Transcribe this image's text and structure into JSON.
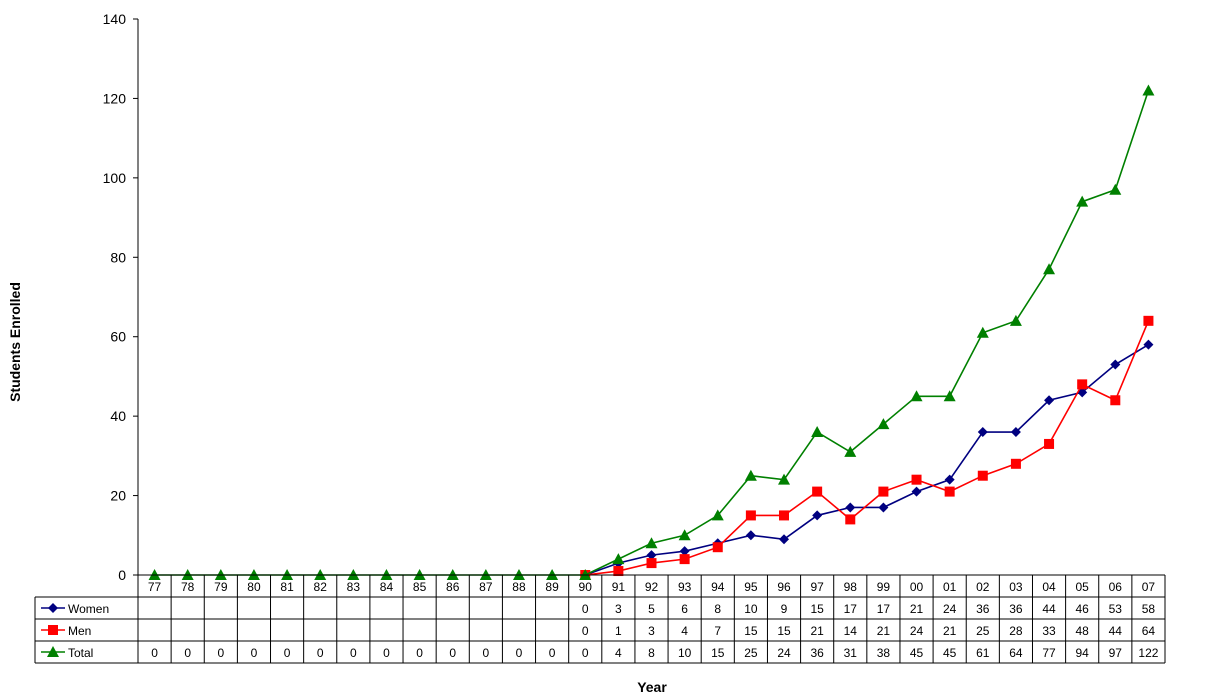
{
  "chart_data": {
    "type": "line",
    "title": "",
    "xlabel": "Year",
    "ylabel": "Students Enrolled",
    "ylim": [
      0,
      140
    ],
    "yticks": [
      0,
      20,
      40,
      60,
      80,
      100,
      120,
      140
    ],
    "grid": false,
    "legend": "data-table-left",
    "categories": [
      "77",
      "78",
      "79",
      "80",
      "81",
      "82",
      "83",
      "84",
      "85",
      "86",
      "87",
      "88",
      "89",
      "90",
      "91",
      "92",
      "93",
      "94",
      "95",
      "96",
      "97",
      "98",
      "99",
      "00",
      "01",
      "02",
      "03",
      "04",
      "05",
      "06",
      "07"
    ],
    "series": [
      {
        "name": "Women",
        "color": "#000080",
        "marker": "diamond",
        "values": [
          null,
          null,
          null,
          null,
          null,
          null,
          null,
          null,
          null,
          null,
          null,
          null,
          null,
          0,
          3,
          5,
          6,
          8,
          10,
          9,
          15,
          17,
          17,
          21,
          24,
          36,
          36,
          44,
          46,
          53,
          58
        ]
      },
      {
        "name": "Men",
        "color": "#ff0000",
        "marker": "square",
        "values": [
          null,
          null,
          null,
          null,
          null,
          null,
          null,
          null,
          null,
          null,
          null,
          null,
          null,
          0,
          1,
          3,
          4,
          7,
          15,
          15,
          21,
          14,
          21,
          24,
          21,
          25,
          28,
          33,
          48,
          44,
          64
        ]
      },
      {
        "name": "Total",
        "color": "#008000",
        "marker": "triangle",
        "values": [
          0,
          0,
          0,
          0,
          0,
          0,
          0,
          0,
          0,
          0,
          0,
          0,
          0,
          0,
          4,
          8,
          10,
          15,
          25,
          24,
          36,
          31,
          38,
          45,
          45,
          61,
          64,
          77,
          94,
          97,
          122
        ]
      }
    ]
  }
}
